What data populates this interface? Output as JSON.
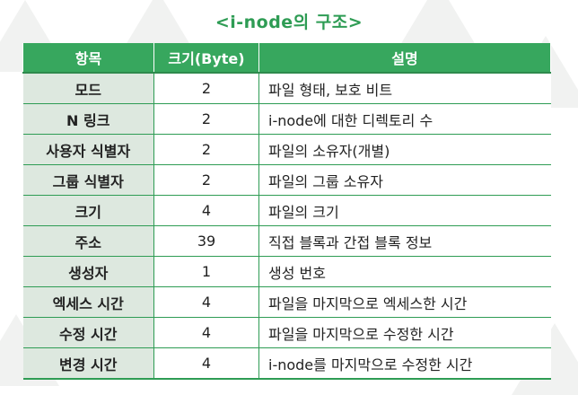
{
  "caption": "<i-node의 구조>",
  "headers": [
    "항목",
    "크기(Byte)",
    "설명"
  ],
  "rows": [
    {
      "item": "모드",
      "size": "2",
      "desc": "파일 형태, 보호 비트"
    },
    {
      "item": "N 링크",
      "size": "2",
      "desc": "i-node에 대한 디렉토리 수"
    },
    {
      "item": "사용자 식별자",
      "size": "2",
      "desc": "파일의 소유자(개별)"
    },
    {
      "item": "그룹 식별자",
      "size": "2",
      "desc": "파일의 그룹 소유자"
    },
    {
      "item": "크기",
      "size": "4",
      "desc": "파일의 크기"
    },
    {
      "item": "주소",
      "size": "39",
      "desc": "직접 블록과 간접 블록 정보"
    },
    {
      "item": "생성자",
      "size": "1",
      "desc": "생성 번호"
    },
    {
      "item": "엑세스 시간",
      "size": "4",
      "desc": "파일을 마지막으로 엑세스한 시간"
    },
    {
      "item": "수정 시간",
      "size": "4",
      "desc": "파일을 마지막으로 수정한 시간"
    },
    {
      "item": "변경 시간",
      "size": "4",
      "desc": "i-node를 마지막으로 수정한 시간"
    }
  ]
}
